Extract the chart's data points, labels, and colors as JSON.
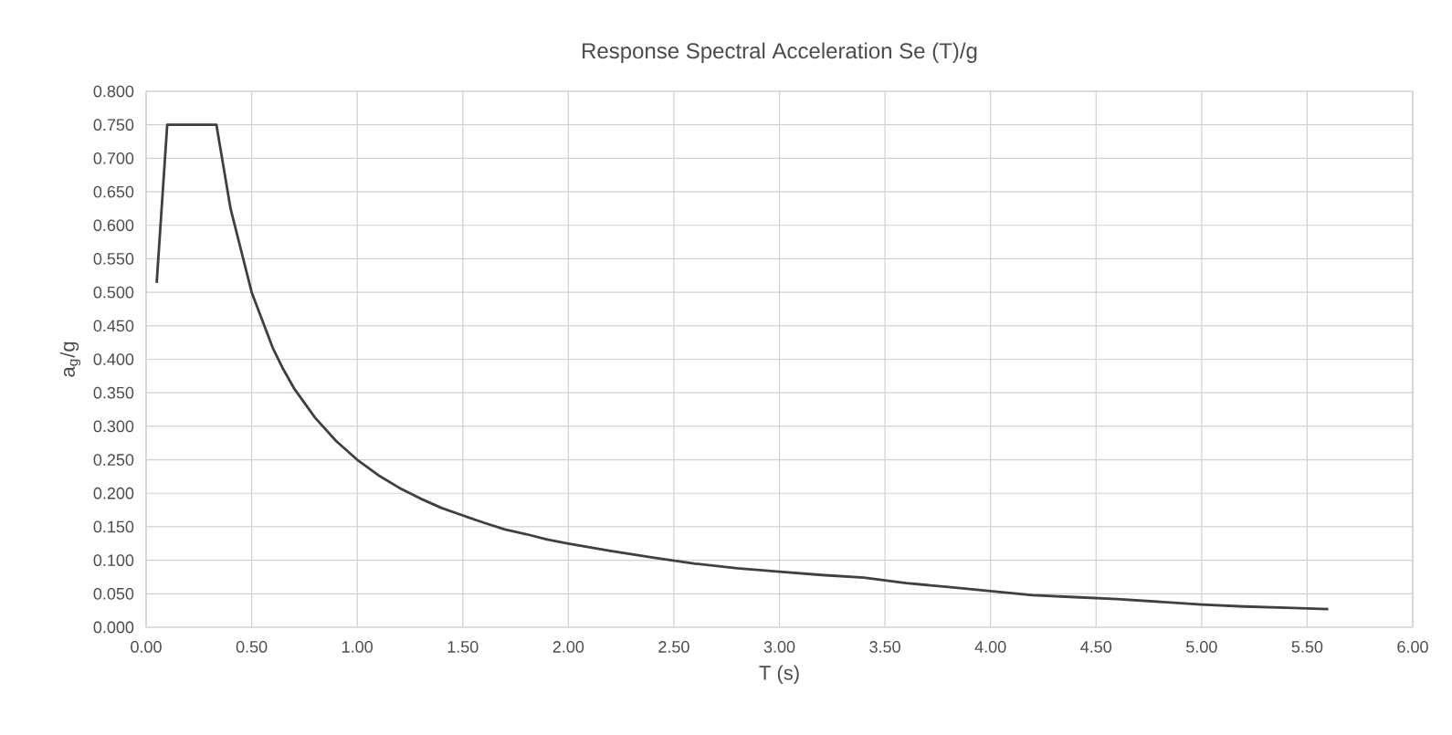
{
  "chart_data": {
    "type": "line",
    "title": "Response Spectral Acceleration Se (T)/g",
    "xlabel": "T (s)",
    "ylabel": "a$_{g}$/g",
    "x": [
      0.05,
      0.1,
      0.333,
      0.4,
      0.5,
      0.6,
      0.65,
      0.7,
      0.8,
      0.9,
      1.0,
      1.1,
      1.2,
      1.3,
      1.4,
      1.5,
      1.6,
      1.7,
      1.8,
      1.9,
      2.0,
      2.2,
      2.4,
      2.6,
      2.8,
      3.0,
      3.2,
      3.4,
      3.6,
      3.8,
      4.0,
      4.2,
      4.4,
      4.6,
      4.8,
      5.0,
      5.2,
      5.4,
      5.6
    ],
    "series": [
      {
        "color": "#404040",
        "values": [
          0.514,
          0.75,
          0.75,
          0.625,
          0.5,
          0.417,
          0.385,
          0.357,
          0.313,
          0.278,
          0.25,
          0.227,
          0.208,
          0.192,
          0.178,
          0.167,
          0.156,
          0.146,
          0.139,
          0.131,
          0.125,
          0.114,
          0.104,
          0.095,
          0.088,
          0.083,
          0.078,
          0.074,
          0.066,
          0.06,
          0.054,
          0.048,
          0.045,
          0.042,
          0.038,
          0.034,
          0.031,
          0.029,
          0.027
        ]
      }
    ],
    "xlim": [
      0,
      6
    ],
    "ylim": [
      0,
      0.8
    ],
    "xticks": [
      {
        "value": 0,
        "label": "0.00"
      },
      {
        "value": 0.5,
        "label": "0.50"
      },
      {
        "value": 1,
        "label": "1.00"
      },
      {
        "value": 1.5,
        "label": "1.50"
      },
      {
        "value": 2,
        "label": "2.00"
      },
      {
        "value": 2.5,
        "label": "2.50"
      },
      {
        "value": 3,
        "label": "3.00"
      },
      {
        "value": 3.5,
        "label": "3.50"
      },
      {
        "value": 4,
        "label": "4.00"
      },
      {
        "value": 4.5,
        "label": "4.50"
      },
      {
        "value": 5,
        "label": "5.00"
      },
      {
        "value": 5.5,
        "label": "5.50"
      },
      {
        "value": 6,
        "label": "6.00"
      }
    ],
    "yticks": [
      {
        "value": 0,
        "label": "0.000"
      },
      {
        "value": 0.05,
        "label": "0.050"
      },
      {
        "value": 0.1,
        "label": "0.100"
      },
      {
        "value": 0.15,
        "label": "0.150"
      },
      {
        "value": 0.2,
        "label": "0.200"
      },
      {
        "value": 0.25,
        "label": "0.250"
      },
      {
        "value": 0.3,
        "label": "0.300"
      },
      {
        "value": 0.35,
        "label": "0.350"
      },
      {
        "value": 0.4,
        "label": "0.400"
      },
      {
        "value": 0.45,
        "label": "0.450"
      },
      {
        "value": 0.5,
        "label": "0.500"
      },
      {
        "value": 0.55,
        "label": "0.550"
      },
      {
        "value": 0.6,
        "label": "0.600"
      },
      {
        "value": 0.65,
        "label": "0.650"
      },
      {
        "value": 0.7,
        "label": "0.700"
      },
      {
        "value": 0.75,
        "label": "0.750"
      },
      {
        "value": 0.8,
        "label": "0.800"
      }
    ],
    "grid": true,
    "marker": "none",
    "line_style": "solid"
  }
}
